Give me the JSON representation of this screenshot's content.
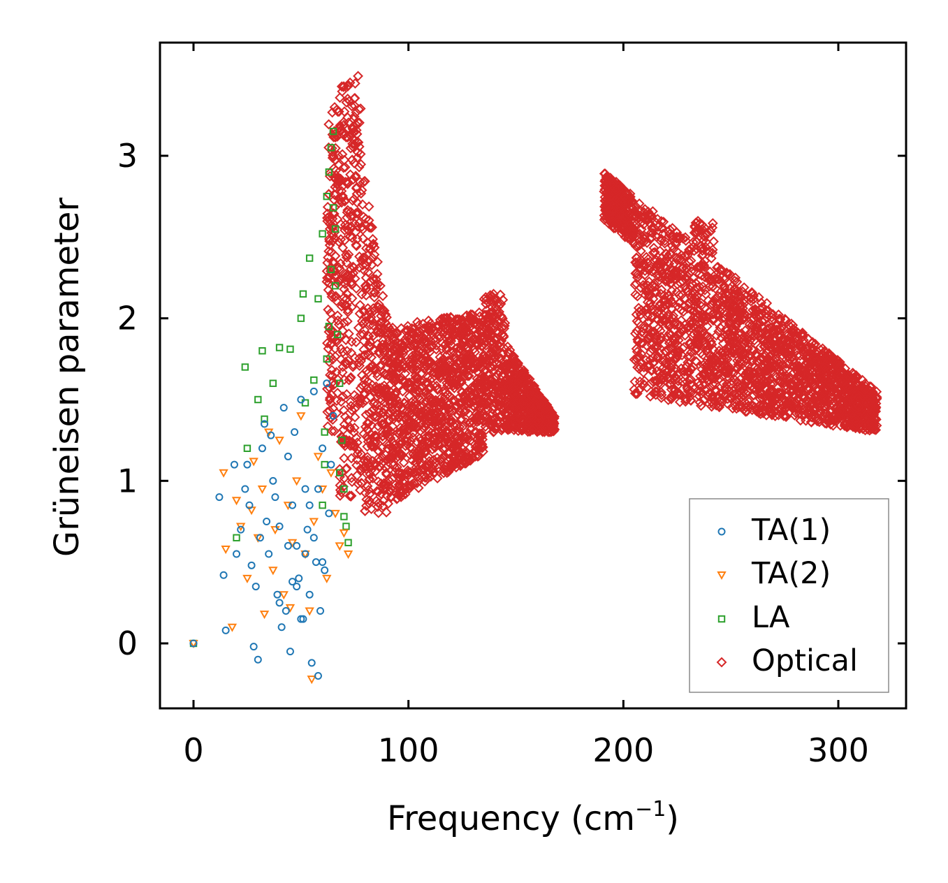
{
  "chart_data": {
    "type": "scatter",
    "title": "",
    "xlabel": "Frequency (cm",
    "xlabel_sup": "−1",
    "xlabel_close": ")",
    "ylabel": "Grüneisen parameter",
    "xlim": [
      -16,
      332
    ],
    "ylim": [
      -0.4,
      3.7
    ],
    "xticks": [
      0,
      100,
      200,
      300
    ],
    "xtick_labels": [
      "0",
      "100",
      "200",
      "300"
    ],
    "yticks": [
      0,
      1,
      2,
      3
    ],
    "ytick_labels": [
      "0",
      "1",
      "2",
      "3"
    ],
    "grid": false,
    "legend_position": "lower-right",
    "series": [
      {
        "name": "TA(1)",
        "marker": "circle",
        "color": "#1f77b4",
        "points": [
          [
            0,
            0
          ],
          [
            12,
            0.9
          ],
          [
            14,
            0.42
          ],
          [
            15,
            0.08
          ],
          [
            19,
            1.1
          ],
          [
            20,
            0.55
          ],
          [
            22,
            0.7
          ],
          [
            24,
            0.95
          ],
          [
            25,
            1.1
          ],
          [
            26,
            0.85
          ],
          [
            27,
            0.48
          ],
          [
            28,
            -0.02
          ],
          [
            29,
            0.35
          ],
          [
            30,
            -0.1
          ],
          [
            31,
            0.65
          ],
          [
            32,
            1.2
          ],
          [
            33,
            1.35
          ],
          [
            34,
            0.75
          ],
          [
            35,
            0.55
          ],
          [
            36,
            1.28
          ],
          [
            37,
            1.0
          ],
          [
            38,
            0.9
          ],
          [
            39,
            0.3
          ],
          [
            40,
            0.72
          ],
          [
            41,
            0.1
          ],
          [
            42,
            1.45
          ],
          [
            43,
            0.2
          ],
          [
            44,
            1.15
          ],
          [
            45,
            -0.05
          ],
          [
            46,
            0.85
          ],
          [
            47,
            1.3
          ],
          [
            48,
            0.6
          ],
          [
            49,
            0.4
          ],
          [
            50,
            1.5
          ],
          [
            51,
            0.15
          ],
          [
            52,
            0.95
          ],
          [
            53,
            0.7
          ],
          [
            54,
            0.3
          ],
          [
            55,
            -0.12
          ],
          [
            56,
            1.55
          ],
          [
            57,
            0.5
          ],
          [
            58,
            -0.2
          ],
          [
            59,
            0.2
          ],
          [
            60,
            1.2
          ],
          [
            61,
            0.45
          ],
          [
            62,
            1.6
          ],
          [
            63,
            0.8
          ],
          [
            64,
            1.1
          ],
          [
            65,
            1.4
          ],
          [
            48,
            0.35
          ],
          [
            52,
            0.55
          ],
          [
            56,
            0.65
          ],
          [
            60,
            0.5
          ],
          [
            44,
            0.6
          ],
          [
            40,
            0.25
          ],
          [
            54,
            0.85
          ],
          [
            58,
            0.95
          ],
          [
            50,
            0.15
          ],
          [
            46,
            0.38
          ]
        ]
      },
      {
        "name": "TA(2)",
        "marker": "triangle-down",
        "color": "#ff7f0e",
        "points": [
          [
            0,
            0
          ],
          [
            14,
            1.05
          ],
          [
            15,
            0.58
          ],
          [
            18,
            0.1
          ],
          [
            20,
            0.88
          ],
          [
            22,
            0.72
          ],
          [
            25,
            0.4
          ],
          [
            28,
            1.12
          ],
          [
            30,
            0.65
          ],
          [
            32,
            0.95
          ],
          [
            35,
            1.3
          ],
          [
            37,
            0.45
          ],
          [
            40,
            1.25
          ],
          [
            42,
            0.3
          ],
          [
            44,
            0.85
          ],
          [
            46,
            0.62
          ],
          [
            48,
            1.0
          ],
          [
            50,
            1.4
          ],
          [
            52,
            0.55
          ],
          [
            54,
            0.2
          ],
          [
            55,
            -0.22
          ],
          [
            56,
            0.75
          ],
          [
            58,
            1.15
          ],
          [
            60,
            0.95
          ],
          [
            62,
            0.4
          ],
          [
            64,
            1.05
          ],
          [
            66,
            0.8
          ],
          [
            68,
            0.6
          ],
          [
            70,
            0.68
          ],
          [
            72,
            0.55
          ],
          [
            45,
            0.22
          ],
          [
            38,
            0.7
          ],
          [
            33,
            0.18
          ],
          [
            27,
            0.82
          ]
        ]
      },
      {
        "name": "LA",
        "marker": "square",
        "color": "#2ca02c",
        "points": [
          [
            0,
            0
          ],
          [
            20,
            0.65
          ],
          [
            24,
            1.7
          ],
          [
            25,
            1.2
          ],
          [
            30,
            1.5
          ],
          [
            32,
            1.8
          ],
          [
            33,
            1.38
          ],
          [
            37,
            1.6
          ],
          [
            40,
            1.82
          ],
          [
            45,
            1.81
          ],
          [
            50,
            2.0
          ],
          [
            51,
            2.15
          ],
          [
            52,
            1.48
          ],
          [
            54,
            2.37
          ],
          [
            56,
            1.62
          ],
          [
            58,
            2.12
          ],
          [
            60,
            2.52
          ],
          [
            61,
            1.3
          ],
          [
            62,
            2.75
          ],
          [
            63,
            2.9
          ],
          [
            64,
            3.05
          ],
          [
            65,
            3.15
          ],
          [
            66,
            2.2
          ],
          [
            67,
            1.9
          ],
          [
            68,
            1.6
          ],
          [
            69,
            1.25
          ],
          [
            70,
            0.95
          ],
          [
            71,
            0.72
          ],
          [
            72,
            0.62
          ],
          [
            66,
            2.55
          ],
          [
            65,
            2.68
          ],
          [
            64,
            2.3
          ],
          [
            63,
            1.95
          ],
          [
            62,
            1.75
          ],
          [
            61,
            1.1
          ],
          [
            60,
            0.85
          ],
          [
            68,
            1.05
          ],
          [
            70,
            0.78
          ]
        ]
      },
      {
        "name": "Optical",
        "marker": "diamond",
        "color": "#d62728",
        "groups": [
          {
            "peak_freq": 72,
            "gamma_range": [
              0.6,
              3.5
            ],
            "freq_span": [
              62,
              168
            ],
            "shape": "spike-then-plateau"
          },
          {
            "peak_freq": 193,
            "gamma_range": [
              1.28,
              2.9
            ],
            "freq_span": [
              190,
              318
            ],
            "shape": "declining-band"
          }
        ]
      }
    ]
  }
}
